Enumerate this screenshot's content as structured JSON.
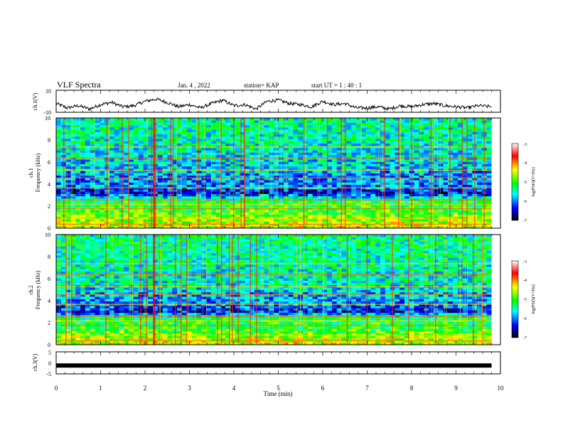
{
  "header": {
    "title": "VLF Spectra",
    "date": "Jan. 4 , 2022",
    "station": "station= KAP",
    "start_ut": "start UT =  1 : 40 : 1"
  },
  "chart_data": [
    {
      "type": "line",
      "panel": "ch1-waveform",
      "ylabel": "ch.1(V)",
      "ylim": [
        -10,
        10
      ],
      "yticks": [
        "10",
        "-10"
      ],
      "xlim": [
        0,
        10
      ],
      "x_minutes": [
        0,
        0.25,
        0.5,
        0.75,
        1,
        1.25,
        1.5,
        1.75,
        2,
        2.25,
        2.5,
        2.75,
        3,
        3.25,
        3.5,
        3.75,
        4,
        4.25,
        4.5,
        4.75,
        5,
        5.25,
        5.5,
        5.75,
        6,
        6.25,
        6.5,
        6.75,
        7,
        7.25,
        7.5,
        7.75,
        8,
        8.25,
        8.5,
        8.75,
        9,
        9.25,
        9.5,
        9.8
      ],
      "y_volts": [
        -2,
        -6,
        -4,
        -7,
        -3,
        -1,
        -5,
        -4,
        0,
        2,
        -1,
        -5,
        -3,
        -6,
        -2,
        1,
        -4,
        -3,
        -7,
        0,
        1,
        -2,
        -3,
        -5,
        0,
        -3,
        -2,
        -6,
        -6,
        -5,
        -7,
        -4,
        -5,
        -3,
        -2,
        -4,
        -5,
        -6,
        -4,
        -5
      ]
    },
    {
      "type": "heatmap",
      "panel": "ch1-spectrogram",
      "ylabel": "Frequency (kHz)",
      "channel_label": "ch.1",
      "ylim": [
        0,
        10
      ],
      "yticks": [
        "0",
        "2",
        "4",
        "6",
        "8",
        "10"
      ],
      "xlim": [
        0,
        10
      ],
      "band_freq_khz": [
        0.3,
        1.5,
        2.5,
        3.2,
        4.0,
        4.7,
        5.4,
        6.5,
        7.5,
        9.0
      ],
      "band_logpsd": [
        -4.5,
        -5.0,
        -5.2,
        -6.5,
        -6.0,
        -6.0,
        -5.8,
        -5.7,
        -5.6,
        -5.5
      ],
      "colorbar": {
        "label": "log(PSD)(V²/Hz)",
        "min": -7,
        "max": -3,
        "ticks": [
          "-3",
          "-4",
          "-5",
          "-6",
          "-7"
        ]
      }
    },
    {
      "type": "heatmap",
      "panel": "ch2-spectrogram",
      "ylabel": "Frequency (kHz)",
      "channel_label": "ch.2",
      "ylim": [
        0,
        10
      ],
      "yticks": [
        "0",
        "2",
        "4",
        "6",
        "8",
        "10"
      ],
      "xlim": [
        0,
        10
      ],
      "band_freq_khz": [
        0.3,
        1.5,
        2.5,
        3.0,
        3.8,
        4.5,
        5.5,
        6.5,
        7.5,
        9.0
      ],
      "band_logpsd": [
        -4.5,
        -5.1,
        -5.3,
        -6.4,
        -6.0,
        -5.9,
        -5.6,
        -5.6,
        -5.5,
        -5.4
      ],
      "colorbar": {
        "label": "log(PSD)(V²/Hz)",
        "min": -7,
        "max": -3,
        "ticks": [
          "-3",
          "-4",
          "-5",
          "-6",
          "-7"
        ]
      }
    },
    {
      "type": "line",
      "panel": "ch3-waveform",
      "ylabel": "ch.3(V)",
      "ylim": [
        -5,
        5
      ],
      "yticks": [
        "5",
        "0",
        "-5"
      ],
      "xlim": [
        0,
        10
      ],
      "x_minutes": [
        0,
        10
      ],
      "y_volts": [
        -1.2,
        -1.2
      ]
    }
  ],
  "x_axis": {
    "label": "Time (min)",
    "ticks": [
      "0",
      "1",
      "2",
      "3",
      "4",
      "5",
      "6",
      "7",
      "8",
      "9",
      "10"
    ]
  },
  "colors": {
    "line": "#000000",
    "colormap": [
      "#ffffff",
      "#ff0000",
      "#ffff00",
      "#00ff00",
      "#00ffff",
      "#0000ff",
      "#000000"
    ]
  }
}
